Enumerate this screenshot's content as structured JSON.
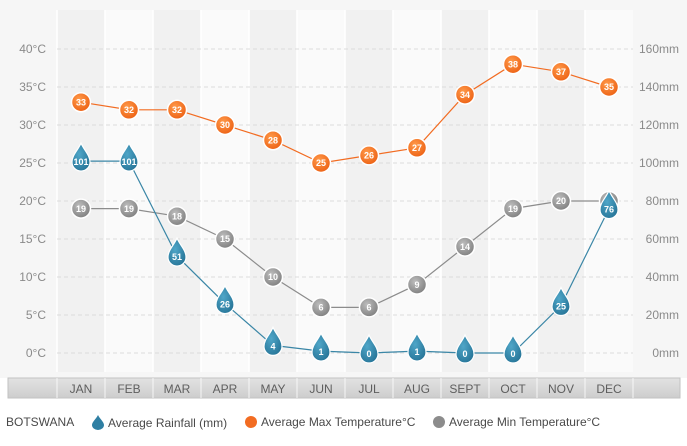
{
  "chart_data": {
    "type": "line",
    "categories": [
      "JAN",
      "FEB",
      "MAR",
      "APR",
      "MAY",
      "JUN",
      "JUL",
      "AUG",
      "SEPT",
      "OCT",
      "NOV",
      "DEC"
    ],
    "left_axis": {
      "ticks": [
        "0°C",
        "5°C",
        "10°C",
        "15°C",
        "20°C",
        "25°C",
        "30°C",
        "35°C",
        "40°C"
      ],
      "ylim": [
        0,
        40
      ]
    },
    "right_axis": {
      "ticks": [
        "0mm",
        "20mm",
        "40mm",
        "60mm",
        "80mm",
        "100mm",
        "120mm",
        "140mm",
        "160mm"
      ],
      "ylim": [
        0,
        160
      ]
    },
    "series": [
      {
        "name": "Average Rainfall (mm)",
        "axis": "right",
        "marker": "drop",
        "color": "#3a86a6",
        "values": [
          101,
          101,
          51,
          26,
          4,
          1,
          0,
          1,
          0,
          0,
          25,
          76
        ]
      },
      {
        "name": "Average Max Temperature°C",
        "axis": "left",
        "marker": "circle",
        "color": "#f26c22",
        "values": [
          33,
          32,
          32,
          30,
          28,
          25,
          26,
          27,
          34,
          38,
          37,
          35
        ]
      },
      {
        "name": "Average Min Temperature°C",
        "axis": "left",
        "marker": "circle",
        "color": "#8c8c8c",
        "values": [
          19,
          19,
          18,
          15,
          10,
          6,
          6,
          9,
          14,
          19,
          20,
          20
        ]
      }
    ],
    "grid": true,
    "legend": "bottom"
  },
  "legend": {
    "title": "BOTSWANA",
    "rain": "Average Rainfall (mm)",
    "max": "Average Max Temperature°C",
    "min": "Average Min Temperature°C"
  }
}
